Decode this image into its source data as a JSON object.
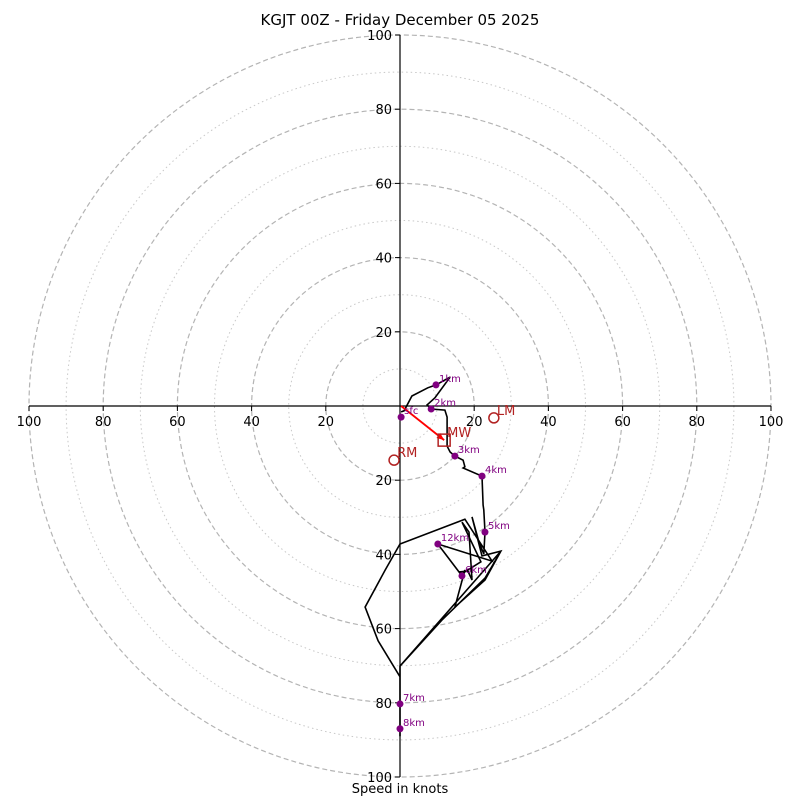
{
  "chart_data": {
    "type": "scatter",
    "subtype": "hodograph",
    "title": "KGJT 00Z - Friday December 05 2025",
    "xlabel": "Speed in knots",
    "ylabel": "",
    "range_knots": 100,
    "rings_major": [
      20,
      40,
      60,
      80,
      100
    ],
    "rings_minor": [
      10,
      30,
      50,
      70,
      90
    ],
    "x_ticks": [
      {
        "value": -100,
        "label": "100"
      },
      {
        "value": -80,
        "label": "80"
      },
      {
        "value": -60,
        "label": "60"
      },
      {
        "value": -40,
        "label": "40"
      },
      {
        "value": -20,
        "label": "20"
      },
      {
        "value": 20,
        "label": "20"
      },
      {
        "value": 40,
        "label": "40"
      },
      {
        "value": 60,
        "label": "60"
      },
      {
        "value": 80,
        "label": "80"
      },
      {
        "value": 100,
        "label": "100"
      }
    ],
    "y_ticks": [
      {
        "value": 100,
        "label": "100"
      },
      {
        "value": 80,
        "label": "80"
      },
      {
        "value": 60,
        "label": "60"
      },
      {
        "value": 40,
        "label": "40"
      },
      {
        "value": 20,
        "label": "20"
      },
      {
        "value": -20,
        "label": "20"
      },
      {
        "value": -40,
        "label": "40"
      },
      {
        "value": -60,
        "label": "60"
      },
      {
        "value": -80,
        "label": "80"
      },
      {
        "value": -100,
        "label": "100"
      }
    ],
    "trace": {
      "name": "wind profile",
      "color": "#000000",
      "points": [
        [
          0.3,
          -1.6
        ],
        [
          1.1,
          -1.3
        ],
        [
          3.2,
          2.7
        ],
        [
          7.5,
          4.9
        ],
        [
          9.7,
          5.7
        ],
        [
          13.5,
          7.8
        ],
        [
          9.4,
          2.2
        ],
        [
          7.3,
          0.3
        ],
        [
          8.4,
          -0.8
        ],
        [
          12.1,
          -1.1
        ],
        [
          12.7,
          -3.0
        ],
        [
          12.7,
          -10.8
        ],
        [
          13.5,
          -12.4
        ],
        [
          14.8,
          -13.5
        ],
        [
          17.0,
          -14.6
        ],
        [
          17.5,
          -16.4
        ],
        [
          17.0,
          -16.7
        ],
        [
          22.1,
          -18.9
        ],
        [
          22.4,
          -26.7
        ],
        [
          22.6,
          -28.0
        ],
        [
          22.9,
          -34.0
        ],
        [
          22.6,
          -39.9
        ],
        [
          21.3,
          -36.7
        ],
        [
          19.4,
          -29.9
        ],
        [
          22.1,
          -40.4
        ],
        [
          27.2,
          -39.1
        ],
        [
          22.9,
          -46.9
        ],
        [
          14.8,
          -54.2
        ],
        [
          17.5,
          -44.2
        ],
        [
          16.7,
          -45.8
        ],
        [
          16.2,
          -44.7
        ],
        [
          18.3,
          -44.5
        ],
        [
          19.4,
          -46.9
        ],
        [
          18.6,
          -34.0
        ],
        [
          16.7,
          -31.3
        ],
        [
          21.8,
          -42.0
        ],
        [
          17.5,
          -44.7
        ],
        [
          16.7,
          -45.8
        ],
        [
          10.2,
          -37.2
        ],
        [
          24.8,
          -41.8
        ],
        [
          17.5,
          -30.5
        ],
        [
          0.0,
          -37.2
        ],
        [
          -4.0,
          -44.2
        ],
        [
          -9.4,
          -54.2
        ],
        [
          -5.9,
          -63.3
        ],
        [
          0.0,
          -73.0
        ],
        [
          0.0,
          -70.1
        ],
        [
          11.3,
          -57.7
        ],
        [
          22.9,
          -46.4
        ],
        [
          27.2,
          -39.1
        ],
        [
          0.0,
          -70.1
        ],
        [
          0.0,
          -80.3
        ],
        [
          0.0,
          -87.0
        ],
        [
          0.0,
          -89.0
        ]
      ]
    },
    "height_markers": [
      {
        "label": "sfc",
        "u": 0.3,
        "v": -3.0
      },
      {
        "label": "1km",
        "u": 9.7,
        "v": 5.7
      },
      {
        "label": "2km",
        "u": 8.4,
        "v": -0.8
      },
      {
        "label": "3km",
        "u": 14.8,
        "v": -13.5
      },
      {
        "label": "4km",
        "u": 22.1,
        "v": -18.9
      },
      {
        "label": "5km",
        "u": 22.9,
        "v": -34.0
      },
      {
        "label": "6km",
        "u": 16.7,
        "v": -45.8
      },
      {
        "label": "7km",
        "u": 0.0,
        "v": -80.3
      },
      {
        "label": "8km",
        "u": 0.0,
        "v": -87.0
      },
      {
        "label": "12km",
        "u": 10.2,
        "v": -37.2
      }
    ],
    "marker_color": "#800080",
    "storm_motion": {
      "color": "#b22222",
      "arrow_color": "#ff0000",
      "LM": {
        "label": "LM",
        "u": 25.3,
        "v": -3.2,
        "shape": "circle"
      },
      "RM": {
        "label": "RM",
        "u": -1.6,
        "v": -14.6,
        "shape": "circle"
      },
      "MW": {
        "label": "MW",
        "u": 11.9,
        "v": -9.2,
        "shape": "square"
      },
      "arrow": {
        "from": [
          0.3,
          0.0
        ],
        "to": [
          11.9,
          -9.2
        ]
      }
    }
  }
}
